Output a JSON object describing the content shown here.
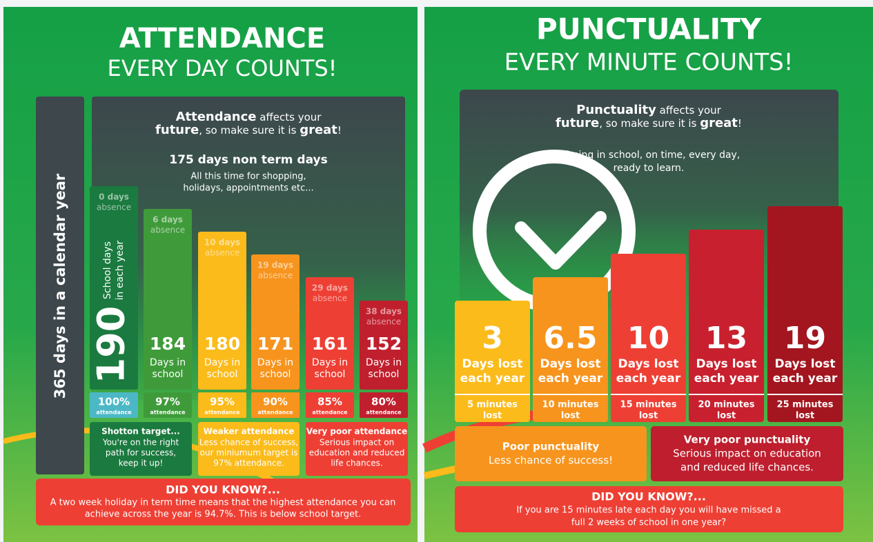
{
  "left": {
    "title": "ATTENDANCE",
    "subtitle": "EVERY DAY COUNTS!",
    "side_label": "365 days in a calendar year",
    "intro": [
      [
        {
          "t": "Attendance",
          "b": true
        },
        {
          "t": " affects your"
        }
      ],
      [
        {
          "t": "future",
          "b": true
        },
        {
          "t": ", so make sure it is "
        },
        {
          "t": "great",
          "b": true
        },
        {
          "t": "!"
        }
      ]
    ],
    "non_term": {
      "heading": "175 days non term days",
      "lines": [
        "All this time for shopping,",
        "holidays, appointments etc..."
      ]
    },
    "bars": [
      {
        "absence": "0 days",
        "absence_label": "absence",
        "days": "190",
        "days_label": [
          "School days",
          "in each year"
        ],
        "percent": "100%",
        "percent_label": "attendance",
        "color": "#1b7a3f",
        "strip": "#4cb8c6"
      },
      {
        "absence": "6 days",
        "absence_label": "absence",
        "days": "184",
        "days_label": [
          "Days in",
          "school"
        ],
        "percent": "97%",
        "percent_label": "attendance",
        "color": "#3f9b3a",
        "strip": "#3f9b3a"
      },
      {
        "absence": "10 days",
        "absence_label": "absence",
        "days": "180",
        "days_label": [
          "Days in",
          "school"
        ],
        "percent": "95%",
        "percent_label": "attendance",
        "color": "#fbbb1a",
        "strip": "#fbbb1a"
      },
      {
        "absence": "19 days",
        "absence_label": "absence",
        "days": "171",
        "days_label": [
          "Days in",
          "school"
        ],
        "percent": "90%",
        "percent_label": "attendance",
        "color": "#f7941d",
        "strip": "#f7941d"
      },
      {
        "absence": "29 days",
        "absence_label": "absence",
        "days": "161",
        "days_label": [
          "Days in",
          "school"
        ],
        "percent": "85%",
        "percent_label": "attendance",
        "color": "#ee3f34",
        "strip": "#ee3f34"
      },
      {
        "absence": "38 days",
        "absence_label": "absence",
        "days": "152",
        "days_label": [
          "Days in",
          "school"
        ],
        "percent": "80%",
        "percent_label": "attendance",
        "color": "#c01f2d",
        "strip": "#c01f2d"
      }
    ],
    "boxes": [
      {
        "title": "Shotton target...",
        "lines": [
          "You're on the right",
          "path for success,",
          "keep it up!"
        ],
        "color": "#1b7a3f"
      },
      {
        "title": "Weaker attendance",
        "lines": [
          "Less chance of success,",
          "our miniumum target is",
          "97% attendance."
        ],
        "color": "#fbbb1a"
      },
      {
        "title": "Very poor attendance",
        "lines": [
          "Serious impact on",
          "education and reduced",
          "life chances."
        ],
        "color": "#ee3f34"
      }
    ],
    "did_you_know": {
      "heading": "DID YOU KNOW?...",
      "lines": [
        "A two week holiday in term time means that the highest attendance you can",
        "achieve across the year is 94.7%. This is below school target."
      ]
    }
  },
  "right": {
    "title": "PUNCTUALITY",
    "subtitle": "EVERY MINUTE COUNTS!",
    "intro": [
      [
        {
          "t": "Punctuality",
          "b": true
        },
        {
          "t": " affects your"
        }
      ],
      [
        {
          "t": "future",
          "b": true
        },
        {
          "t": ", so make sure it is "
        },
        {
          "t": "great",
          "b": true
        },
        {
          "t": "!"
        }
      ]
    ],
    "tagline": [
      "...being in school, on time, every day,",
      "ready to learn."
    ],
    "bars": [
      {
        "value": "3",
        "label": [
          "Days lost",
          "each year"
        ],
        "minutes": [
          "5 minutes",
          "lost"
        ],
        "color": "#fbbb1a"
      },
      {
        "value": "6.5",
        "label": [
          "Days lost",
          "each year"
        ],
        "minutes": [
          "10 minutes",
          "lost"
        ],
        "color": "#f7941d"
      },
      {
        "value": "10",
        "label": [
          "Days lost",
          "each year"
        ],
        "minutes": [
          "15 minutes",
          "lost"
        ],
        "color": "#ee3f34"
      },
      {
        "value": "13",
        "label": [
          "Days lost",
          "each year"
        ],
        "minutes": [
          "20 minutes",
          "lost"
        ],
        "color": "#c8202e"
      },
      {
        "value": "19",
        "label": [
          "Days lost",
          "each year"
        ],
        "minutes": [
          "25 minutes",
          "lost"
        ],
        "color": "#a3161f"
      }
    ],
    "boxes": [
      {
        "title": "Poor punctuality",
        "lines": [
          "Less chance of success!"
        ],
        "color": "#f7941d"
      },
      {
        "title": "Very poor punctuality",
        "lines": [
          "Serious impact on education",
          "and reduced life chances."
        ],
        "color": "#be1e2d"
      }
    ],
    "did_you_know": {
      "heading": "DID YOU KNOW?...",
      "lines": [
        "If you are 15 minutes late each day you will have missed a",
        "full 2 weeks of school in one year?"
      ]
    }
  }
}
